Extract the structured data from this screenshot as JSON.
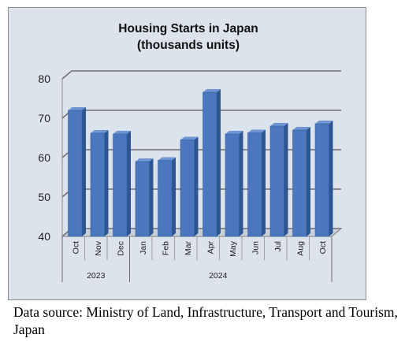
{
  "chart_data": {
    "type": "bar",
    "title": "Housing Starts in Japan",
    "subtitle": "(thousands units)",
    "categories": [
      "Oct",
      "Nov",
      "Dec",
      "Jan",
      "Feb",
      "Mar",
      "Apr",
      "May",
      "Jun",
      "Jul",
      "Aug",
      "Oct"
    ],
    "groups": [
      {
        "label": "2023",
        "count": 3
      },
      {
        "label": "2024",
        "count": 9
      }
    ],
    "values": [
      72.0,
      66.2,
      66.0,
      59.0,
      59.3,
      64.5,
      76.6,
      66.0,
      66.3,
      68.0,
      67.0,
      68.6
    ],
    "ylim": [
      40,
      80
    ],
    "yticks": [
      40,
      50,
      60,
      70,
      80
    ],
    "xlabel": "",
    "ylabel": "",
    "grid": true,
    "bar_color": "#4a77bd",
    "bar_side_color": "#2d558f",
    "bar_top_color": "#6f96d3",
    "background_color": "#dde3ec"
  },
  "footnote": "Data source: Ministry of Land, Infrastructure, Transport and Tourism, Japan"
}
